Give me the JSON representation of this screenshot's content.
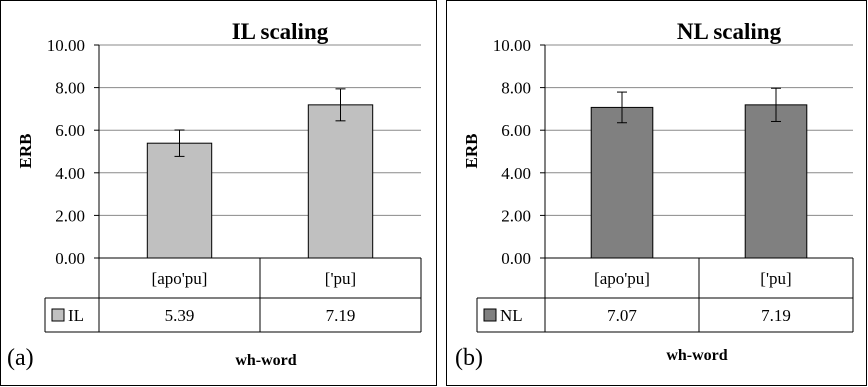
{
  "chart_data": [
    {
      "type": "bar",
      "title": "IL scaling",
      "panel_label": "(a)",
      "xlabel": "wh-word",
      "ylabel": "ERB",
      "ylim": [
        0,
        10
      ],
      "yticks": [
        "0.00",
        "2.00",
        "4.00",
        "6.00",
        "8.00",
        "10.00"
      ],
      "grid": true,
      "categories": [
        "[apo'pu]",
        "['pu]"
      ],
      "series": [
        {
          "name": "IL",
          "color": "#c0c0c0",
          "values": [
            5.39,
            7.19
          ],
          "error": [
            0.62,
            0.75
          ]
        }
      ],
      "data_table": {
        "rows": [
          {
            "legend": "IL",
            "values": [
              "5.39",
              "7.19"
            ]
          }
        ]
      }
    },
    {
      "type": "bar",
      "title": "NL scaling",
      "panel_label": "(b)",
      "xlabel": "wh-word",
      "ylabel": "ERB",
      "ylim": [
        0,
        10
      ],
      "yticks": [
        "0.00",
        "2.00",
        "4.00",
        "6.00",
        "8.00",
        "10.00"
      ],
      "grid": true,
      "categories": [
        "[apo'pu]",
        "['pu]"
      ],
      "series": [
        {
          "name": "NL",
          "color": "#808080",
          "values": [
            7.07,
            7.19
          ],
          "error": [
            0.72,
            0.78
          ]
        }
      ],
      "data_table": {
        "rows": [
          {
            "legend": "NL",
            "values": [
              "7.07",
              "7.19"
            ]
          }
        ]
      }
    }
  ]
}
